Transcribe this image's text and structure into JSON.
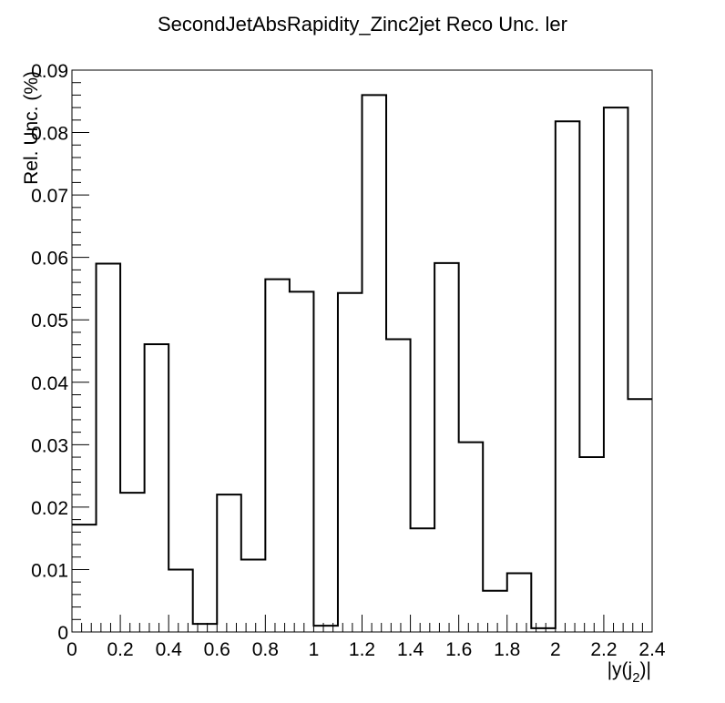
{
  "chart_data": {
    "type": "bar",
    "style": "step-histogram",
    "title": "SecondJetAbsRapidity_Zinc2jet Reco Unc. ler",
    "xlabel": "|y(j",
    "xlabel_subscript": "2",
    "xlabel_suffix": ")|",
    "ylabel": "Rel. Unc. (%)",
    "xlim": [
      0,
      2.4
    ],
    "ylim": [
      0,
      0.09
    ],
    "bin_edges": [
      0,
      0.1,
      0.2,
      0.3,
      0.4,
      0.5,
      0.6,
      0.7,
      0.8,
      0.9,
      1.0,
      1.1,
      1.2,
      1.3,
      1.4,
      1.5,
      1.6,
      1.7,
      1.8,
      1.9,
      2.0,
      2.1,
      2.2,
      2.3,
      2.4
    ],
    "values": [
      0.0172,
      0.059,
      0.0223,
      0.0461,
      0.01,
      0.0013,
      0.022,
      0.0116,
      0.0565,
      0.0545,
      0.001,
      0.0543,
      0.086,
      0.0469,
      0.0166,
      0.0591,
      0.0304,
      0.0066,
      0.0094,
      0.0006,
      0.0818,
      0.028,
      0.084,
      0.0373
    ],
    "x_ticks": [
      {
        "value": 0,
        "label": "0"
      },
      {
        "value": 0.2,
        "label": "0.2"
      },
      {
        "value": 0.4,
        "label": "0.4"
      },
      {
        "value": 0.6,
        "label": "0.6"
      },
      {
        "value": 0.8,
        "label": "0.8"
      },
      {
        "value": 1.0,
        "label": "1"
      },
      {
        "value": 1.2,
        "label": "1.2"
      },
      {
        "value": 1.4,
        "label": "1.4"
      },
      {
        "value": 1.6,
        "label": "1.6"
      },
      {
        "value": 1.8,
        "label": "1.8"
      },
      {
        "value": 2.0,
        "label": "2"
      },
      {
        "value": 2.2,
        "label": "2.2"
      },
      {
        "value": 2.4,
        "label": "2.4"
      }
    ],
    "y_ticks": [
      {
        "value": 0,
        "label": "0"
      },
      {
        "value": 0.01,
        "label": "0.01"
      },
      {
        "value": 0.02,
        "label": "0.02"
      },
      {
        "value": 0.03,
        "label": "0.03"
      },
      {
        "value": 0.04,
        "label": "0.04"
      },
      {
        "value": 0.05,
        "label": "0.05"
      },
      {
        "value": 0.06,
        "label": "0.06"
      },
      {
        "value": 0.07,
        "label": "0.07"
      },
      {
        "value": 0.08,
        "label": "0.08"
      },
      {
        "value": 0.09,
        "label": "0.09"
      }
    ],
    "grid": false,
    "line_color": "#000000"
  }
}
